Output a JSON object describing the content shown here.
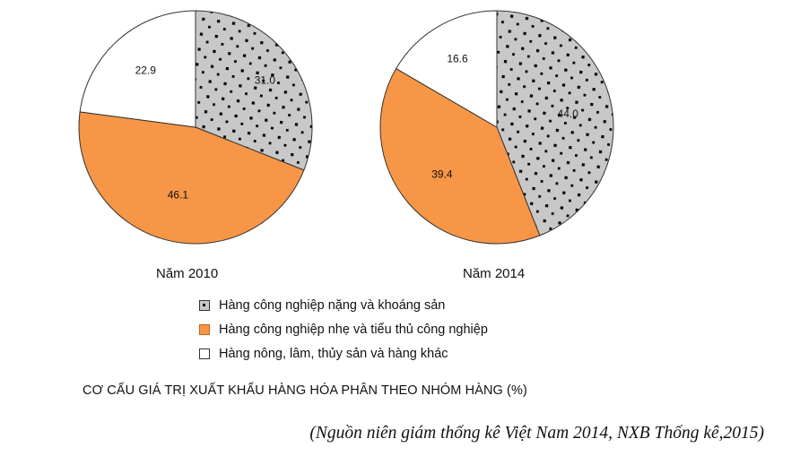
{
  "chart_data": [
    {
      "type": "pie",
      "label": "Năm 2010",
      "slices": [
        {
          "category": "Hàng công nghiệp nặng và khoáng sản",
          "value": 31.0,
          "label": "31.0"
        },
        {
          "category": "Hàng công nghiệp nhẹ và tiểu thủ công nghiệp",
          "value": 46.1,
          "label": "46.1"
        },
        {
          "category": "Hàng nông, lâm, thủy sản và hàng khác",
          "value": 22.9,
          "label": "22.9"
        }
      ]
    },
    {
      "type": "pie",
      "label": "Năm 2014",
      "slices": [
        {
          "category": "Hàng công nghiệp nặng và khoáng sản",
          "value": 44.0,
          "label": "44.0"
        },
        {
          "category": "Hàng công nghiệp nhẹ và tiểu thủ công nghiệp",
          "value": 39.4,
          "label": "39.4"
        },
        {
          "category": "Hàng nông, lâm, thủy sản và hàng khác",
          "value": 16.6,
          "label": "16.6"
        }
      ]
    }
  ],
  "legend": [
    {
      "label": "Hàng công nghiệp nặng và khoáng sản",
      "fill": "dotted-grey"
    },
    {
      "label": "Hàng công nghiệp nhẹ và tiểu thủ công nghiệp",
      "fill": "orange"
    },
    {
      "label": "Hàng nông, lâm, thủy sản và hàng khác",
      "fill": "white"
    }
  ],
  "colors": {
    "heavy": "#c8c8c8",
    "light": "#f79646",
    "agri": "#ffffff",
    "outline": "#333333"
  },
  "caption": "CƠ CẤU GIÁ TRỊ XUẤT KHẨU HÀNG HÓA PHÂN THEO NHÓM HÀNG (%)",
  "source": "(Nguồn niên giám thống kê Việt Nam 2014, NXB Thống kê,2015)"
}
